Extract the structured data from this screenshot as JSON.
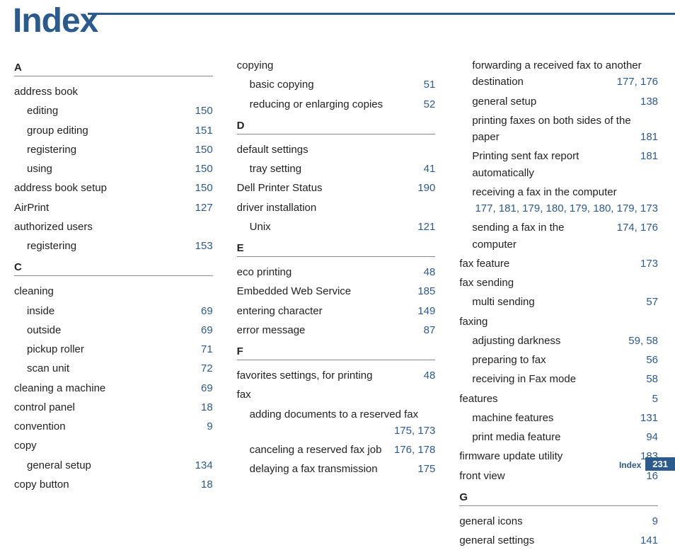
{
  "page": {
    "title": "Index",
    "footer_label": "Index",
    "footer_page": "231",
    "title_color": "#2b5a8c",
    "page_link_color": "#2b5a8c",
    "bg_color": "#ffffff"
  },
  "columns": [
    {
      "blocks": [
        {
          "type": "letter",
          "label": "A"
        },
        {
          "type": "entry",
          "text": "address book"
        },
        {
          "type": "sub",
          "text": "editing",
          "pages": "150"
        },
        {
          "type": "sub",
          "text": "group editing",
          "pages": "151"
        },
        {
          "type": "sub",
          "text": "registering",
          "pages": "150"
        },
        {
          "type": "sub",
          "text": "using",
          "pages": "150"
        },
        {
          "type": "entry",
          "text": "address book setup",
          "pages": "150"
        },
        {
          "type": "entry",
          "text": "AirPrint",
          "pages": "127"
        },
        {
          "type": "entry",
          "text": "authorized users"
        },
        {
          "type": "sub",
          "text": "registering",
          "pages": "153"
        },
        {
          "type": "letter",
          "label": "C"
        },
        {
          "type": "entry",
          "text": "cleaning"
        },
        {
          "type": "sub",
          "text": "inside",
          "pages": "69"
        },
        {
          "type": "sub",
          "text": "outside",
          "pages": "69"
        },
        {
          "type": "sub",
          "text": "pickup roller",
          "pages": "71"
        },
        {
          "type": "sub",
          "text": "scan unit",
          "pages": "72"
        },
        {
          "type": "entry",
          "text": "cleaning a machine",
          "pages": "69"
        },
        {
          "type": "entry",
          "text": "control panel",
          "pages": "18"
        },
        {
          "type": "entry",
          "text": "convention",
          "pages": "9"
        },
        {
          "type": "entry",
          "text": "copy"
        },
        {
          "type": "sub",
          "text": "general setup",
          "pages": "134"
        },
        {
          "type": "entry",
          "text": "copy button",
          "pages": "18"
        }
      ]
    },
    {
      "blocks": [
        {
          "type": "entry",
          "text": "copying"
        },
        {
          "type": "sub",
          "text": "basic copying",
          "pages": "51"
        },
        {
          "type": "sub",
          "text": "reducing or enlarging copies",
          "pages": "52"
        },
        {
          "type": "letter",
          "label": "D"
        },
        {
          "type": "entry",
          "text": "default settings"
        },
        {
          "type": "sub",
          "text": "tray setting",
          "pages": "41"
        },
        {
          "type": "entry",
          "text": "Dell Printer Status",
          "pages": "190"
        },
        {
          "type": "entry",
          "text": "driver installation"
        },
        {
          "type": "sub",
          "text": "Unix",
          "pages": "121"
        },
        {
          "type": "letter",
          "label": "E"
        },
        {
          "type": "entry",
          "text": "eco printing",
          "pages": "48"
        },
        {
          "type": "entry",
          "text": "Embedded Web Service",
          "pages": "185"
        },
        {
          "type": "entry",
          "text": "entering character",
          "pages": "149"
        },
        {
          "type": "entry",
          "text": "error message",
          "pages": "87"
        },
        {
          "type": "letter",
          "label": "F"
        },
        {
          "type": "entry",
          "text": "favorites settings, for printing",
          "pages": "48"
        },
        {
          "type": "entry",
          "text": "fax"
        },
        {
          "type": "sub",
          "text": "adding documents to a reserved fax",
          "pages": "175, 173",
          "wrap": true
        },
        {
          "type": "sub",
          "text": "canceling a reserved fax job",
          "pages": "176, 178"
        },
        {
          "type": "sub",
          "text": "delaying a fax transmission",
          "pages": "175"
        }
      ]
    },
    {
      "blocks": [
        {
          "type": "sub",
          "text": "forwarding a received fax to another destination",
          "pages": "177, 176",
          "wrap": true
        },
        {
          "type": "sub",
          "text": "general setup",
          "pages": "138"
        },
        {
          "type": "sub",
          "text": "printing faxes on both sides of the paper",
          "pages": "181",
          "wrap": true
        },
        {
          "type": "sub",
          "text": "Printing sent fax report automatically",
          "pages": "181"
        },
        {
          "type": "sub",
          "text": "receiving a fax in the computer",
          "pages": "177, 181, 179,               180, 179, 180, 179, 173",
          "wrap": true
        },
        {
          "type": "sub",
          "text": "sending a fax in the computer",
          "pages": "174, 176"
        },
        {
          "type": "entry",
          "text": "fax feature",
          "pages": "173"
        },
        {
          "type": "entry",
          "text": "fax sending"
        },
        {
          "type": "sub",
          "text": "multi sending",
          "pages": "57"
        },
        {
          "type": "entry",
          "text": "faxing"
        },
        {
          "type": "sub",
          "text": "adjusting darkness",
          "pages": "59, 58"
        },
        {
          "type": "sub",
          "text": "preparing to fax",
          "pages": "56"
        },
        {
          "type": "sub",
          "text": "receiving in Fax mode",
          "pages": "58"
        },
        {
          "type": "entry",
          "text": "features",
          "pages": "5"
        },
        {
          "type": "sub",
          "text": "machine features",
          "pages": "131"
        },
        {
          "type": "sub",
          "text": "print media feature",
          "pages": "94"
        },
        {
          "type": "entry",
          "text": "firmware update utility",
          "pages": "183"
        },
        {
          "type": "entry",
          "text": "front view",
          "pages": "16"
        },
        {
          "type": "letter",
          "label": "G"
        },
        {
          "type": "entry",
          "text": "general icons",
          "pages": "9"
        },
        {
          "type": "entry",
          "text": "general settings",
          "pages": "141"
        }
      ]
    }
  ]
}
